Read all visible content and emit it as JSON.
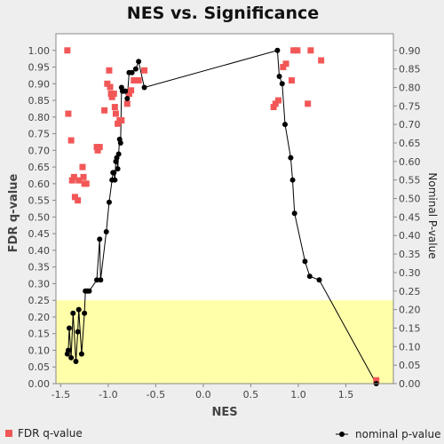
{
  "chart_data": {
    "type": "scatter",
    "title": "NES vs. Significance",
    "xlabel": "NES",
    "ylabel_left": "FDR q-value",
    "ylabel_right": "Nominal P-value",
    "xlim": [
      -1.55,
      2.0
    ],
    "ylim_left": [
      0.0,
      1.05
    ],
    "ylim_right": [
      0.0,
      0.945
    ],
    "x_ticks": [
      -1.5,
      -1.0,
      -0.5,
      0.0,
      0.5,
      1.0,
      1.5
    ],
    "x_tick_labels": [
      "-1.5",
      "-1.0",
      "-0.5",
      "0.0",
      "0.5",
      "1.0",
      "1.5"
    ],
    "y_left_ticks": [
      0.0,
      0.05,
      0.1,
      0.15,
      0.2,
      0.25,
      0.3,
      0.35,
      0.4,
      0.45,
      0.5,
      0.55,
      0.6,
      0.65,
      0.7,
      0.75,
      0.8,
      0.85,
      0.9,
      0.95,
      1.0
    ],
    "y_left_tick_labels": [
      "0.00",
      "0.05",
      "0.10",
      "0.15",
      "0.20",
      "0.25",
      "0.30",
      "0.35",
      "0.40",
      "0.45",
      "0.50",
      "0.55",
      "0.60",
      "0.65",
      "0.70",
      "0.75",
      "0.80",
      "0.85",
      "0.90",
      "0.95",
      "1.00"
    ],
    "y_right_ticks": [
      0.0,
      0.05,
      0.1,
      0.15,
      0.2,
      0.25,
      0.3,
      0.35,
      0.4,
      0.45,
      0.5,
      0.55,
      0.6,
      0.65,
      0.7,
      0.75,
      0.8,
      0.85,
      0.9
    ],
    "y_right_tick_labels": [
      "0.00",
      "0.05",
      "0.10",
      "0.15",
      "0.20",
      "0.25",
      "0.30",
      "0.35",
      "0.40",
      "0.45",
      "0.50",
      "0.55",
      "0.60",
      "0.65",
      "0.70",
      "0.75",
      "0.80",
      "0.85",
      "0.90"
    ],
    "highlight_band_left": [
      0.0,
      0.25
    ],
    "colors": {
      "fdr": "#f25757",
      "nominal": "#000000",
      "band": "#ffffaa",
      "plot_bg": "#ffffff",
      "page_bg": "#eeeeee"
    },
    "series": [
      {
        "name": "FDR q-value",
        "marker": "square",
        "axis": "left",
        "points": [
          [
            -1.43,
            1.0
          ],
          [
            -1.42,
            0.81
          ],
          [
            -1.39,
            0.73
          ],
          [
            -1.38,
            0.61
          ],
          [
            -1.36,
            0.62
          ],
          [
            -1.35,
            0.56
          ],
          [
            -1.32,
            0.55
          ],
          [
            -1.31,
            0.61
          ],
          [
            -1.27,
            0.65
          ],
          [
            -1.26,
            0.62
          ],
          [
            -1.25,
            0.6
          ],
          [
            -1.23,
            0.6
          ],
          [
            -1.12,
            0.71
          ],
          [
            -1.11,
            0.7
          ],
          [
            -1.09,
            0.71
          ],
          [
            -1.04,
            0.82
          ],
          [
            -1.01,
            0.9
          ],
          [
            -0.99,
            0.94
          ],
          [
            -0.98,
            0.89
          ],
          [
            -0.97,
            0.87
          ],
          [
            -0.96,
            0.86
          ],
          [
            -0.94,
            0.87
          ],
          [
            -0.93,
            0.83
          ],
          [
            -0.92,
            0.81
          ],
          [
            -0.9,
            0.78
          ],
          [
            -0.88,
            0.79
          ],
          [
            -0.86,
            0.79
          ],
          [
            -0.8,
            0.84
          ],
          [
            -0.78,
            0.87
          ],
          [
            -0.76,
            0.88
          ],
          [
            -0.73,
            0.91
          ],
          [
            -0.71,
            0.91
          ],
          [
            -0.68,
            0.91
          ],
          [
            -0.62,
            0.94
          ],
          [
            0.74,
            0.83
          ],
          [
            0.76,
            0.84
          ],
          [
            0.79,
            0.85
          ],
          [
            0.84,
            0.95
          ],
          [
            0.87,
            0.96
          ],
          [
            0.93,
            0.91
          ],
          [
            0.95,
            1.0
          ],
          [
            0.99,
            1.0
          ],
          [
            1.1,
            0.84
          ],
          [
            1.13,
            1.0
          ],
          [
            1.24,
            0.97
          ],
          [
            1.82,
            0.01
          ]
        ]
      },
      {
        "name": "nominal p-value",
        "marker": "circle",
        "axis": "right",
        "connected": true,
        "points": [
          [
            -1.43,
            0.08
          ],
          [
            -1.42,
            0.09
          ],
          [
            -1.41,
            0.15
          ],
          [
            -1.39,
            0.07
          ],
          [
            -1.37,
            0.19
          ],
          [
            -1.34,
            0.06
          ],
          [
            -1.32,
            0.14
          ],
          [
            -1.31,
            0.2
          ],
          [
            -1.28,
            0.08
          ],
          [
            -1.25,
            0.19
          ],
          [
            -1.24,
            0.25
          ],
          [
            -1.22,
            0.25
          ],
          [
            -1.2,
            0.25
          ],
          [
            -1.12,
            0.28
          ],
          [
            -1.09,
            0.39
          ],
          [
            -1.08,
            0.28
          ],
          [
            -1.02,
            0.41
          ],
          [
            -0.99,
            0.49
          ],
          [
            -0.96,
            0.55
          ],
          [
            -0.95,
            0.57
          ],
          [
            -0.94,
            0.57
          ],
          [
            -0.93,
            0.55
          ],
          [
            -0.92,
            0.6
          ],
          [
            -0.91,
            0.61
          ],
          [
            -0.9,
            0.58
          ],
          [
            -0.89,
            0.62
          ],
          [
            -0.88,
            0.66
          ],
          [
            -0.87,
            0.65
          ],
          [
            -0.86,
            0.8
          ],
          [
            -0.85,
            0.79
          ],
          [
            -0.84,
            0.79
          ],
          [
            -0.82,
            0.79
          ],
          [
            -0.8,
            0.77
          ],
          [
            -0.78,
            0.84
          ],
          [
            -0.75,
            0.84
          ],
          [
            -0.71,
            0.85
          ],
          [
            -0.68,
            0.87
          ],
          [
            -0.62,
            0.8
          ],
          [
            0.78,
            0.9
          ],
          [
            0.8,
            0.83
          ],
          [
            0.83,
            0.81
          ],
          [
            0.86,
            0.7
          ],
          [
            0.92,
            0.61
          ],
          [
            0.94,
            0.55
          ],
          [
            0.96,
            0.46
          ],
          [
            1.07,
            0.33
          ],
          [
            1.12,
            0.29
          ],
          [
            1.22,
            0.28
          ],
          [
            1.82,
            0.0
          ]
        ]
      }
    ],
    "legend": [
      "FDR q-value",
      "nominal p-value"
    ],
    "legend_position": "bottom",
    "grid": false
  }
}
